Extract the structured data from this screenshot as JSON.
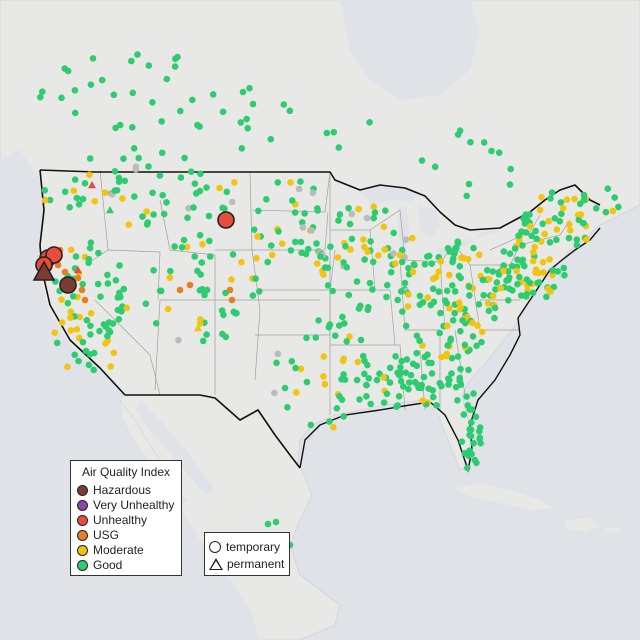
{
  "legend_aqi": {
    "title": "Air Quality Index",
    "categories": [
      {
        "label": "Hazardous",
        "color": "#7d3c33"
      },
      {
        "label": "Very Unhealthy",
        "color": "#8e44ad"
      },
      {
        "label": "Unhealthy",
        "color": "#e74c3c"
      },
      {
        "label": "USG",
        "color": "#e67e22"
      },
      {
        "label": "Moderate",
        "color": "#f1c40f"
      },
      {
        "label": "Good",
        "color": "#2ecc71"
      }
    ]
  },
  "legend_site": {
    "temporary": "temporary",
    "permanent": "permanent"
  },
  "colors": {
    "land": "#e8e8e6",
    "water": "#dfe3e8",
    "no_data": "#bbbbbb",
    "border": "#111111",
    "state_line": "#9a9a9a"
  }
}
